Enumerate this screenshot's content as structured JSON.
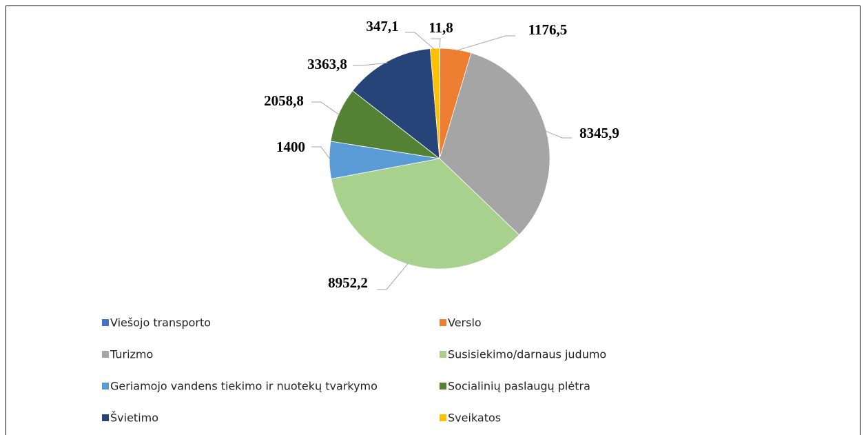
{
  "chart_data": {
    "type": "pie",
    "categories": [
      "Viešojo transporto",
      "Verslo",
      "Turizmo",
      "Susisiekimo/darnaus judumo",
      "Geriamojo vandens tiekimo ir nuotekų tvarkymo",
      "Socialinių paslaugų plėtra",
      "Švietimo",
      "Sveikatos"
    ],
    "values": [
      11.8,
      1176.5,
      8345.9,
      8952.2,
      1400,
      2058.8,
      3363.8,
      347.1
    ],
    "value_labels": [
      "11,8",
      "1176,5",
      "8345,9",
      "8952,2",
      "1400",
      "2058,8",
      "3363,8",
      "347,1"
    ],
    "colors": [
      "#4472c4",
      "#ed7d31",
      "#a5a5a5",
      "#a9d18e",
      "#5b9bd5",
      "#548235",
      "#264478",
      "#ffc000"
    ],
    "legend": "bottom"
  }
}
